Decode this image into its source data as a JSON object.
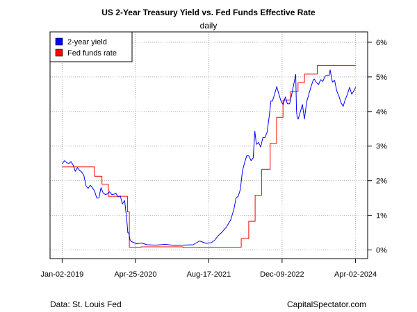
{
  "chart_data": {
    "type": "line",
    "title": "US 2-Year Treasury Yield vs. Fed Funds Effective Rate",
    "subtitle": "daily",
    "x_ticks": [
      "Jan-02-2019",
      "Apr-25-2020",
      "Aug-17-2021",
      "Dec-09-2022",
      "Apr-02-2024"
    ],
    "xlim": [
      "2018-10-15",
      "2024-06-20"
    ],
    "y_ticks": [
      "0%",
      "1%",
      "2%",
      "3%",
      "4%",
      "5%",
      "6%"
    ],
    "ylim": [
      -0.25,
      6.3
    ],
    "y_axis_side": "right",
    "grid": true,
    "legend_position": "top-left",
    "series": [
      {
        "name": "2-year yield",
        "color": "#0000ff",
        "points": [
          [
            "2019-01-02",
            2.49
          ],
          [
            "2019-01-18",
            2.58
          ],
          [
            "2019-02-01",
            2.52
          ],
          [
            "2019-02-15",
            2.5
          ],
          [
            "2019-03-01",
            2.55
          ],
          [
            "2019-03-15",
            2.45
          ],
          [
            "2019-03-29",
            2.27
          ],
          [
            "2019-04-12",
            2.38
          ],
          [
            "2019-04-26",
            2.3
          ],
          [
            "2019-05-10",
            2.25
          ],
          [
            "2019-05-24",
            2.15
          ],
          [
            "2019-06-07",
            1.85
          ],
          [
            "2019-06-21",
            1.78
          ],
          [
            "2019-07-05",
            1.87
          ],
          [
            "2019-07-19",
            1.8
          ],
          [
            "2019-08-02",
            1.7
          ],
          [
            "2019-08-16",
            1.5
          ],
          [
            "2019-08-30",
            1.5
          ],
          [
            "2019-09-13",
            1.8
          ],
          [
            "2019-09-27",
            1.65
          ],
          [
            "2019-10-11",
            1.6
          ],
          [
            "2019-10-25",
            1.62
          ],
          [
            "2019-11-08",
            1.68
          ],
          [
            "2019-11-22",
            1.6
          ],
          [
            "2019-12-06",
            1.61
          ],
          [
            "2019-12-20",
            1.63
          ],
          [
            "2020-01-03",
            1.53
          ],
          [
            "2020-01-17",
            1.56
          ],
          [
            "2020-01-31",
            1.33
          ],
          [
            "2020-02-14",
            1.43
          ],
          [
            "2020-02-28",
            0.9
          ],
          [
            "2020-03-06",
            0.5
          ],
          [
            "2020-03-13",
            0.49
          ],
          [
            "2020-03-20",
            0.3
          ],
          [
            "2020-03-27",
            0.25
          ],
          [
            "2020-04-10",
            0.22
          ],
          [
            "2020-05-01",
            0.18
          ],
          [
            "2020-06-05",
            0.2
          ],
          [
            "2020-07-10",
            0.15
          ],
          [
            "2020-09-04",
            0.14
          ],
          [
            "2020-11-06",
            0.16
          ],
          [
            "2021-01-08",
            0.13
          ],
          [
            "2021-03-05",
            0.14
          ],
          [
            "2021-05-07",
            0.15
          ],
          [
            "2021-06-18",
            0.26
          ],
          [
            "2021-07-30",
            0.19
          ],
          [
            "2021-09-03",
            0.21
          ],
          [
            "2021-09-24",
            0.28
          ],
          [
            "2021-10-15",
            0.4
          ],
          [
            "2021-11-12",
            0.52
          ],
          [
            "2021-12-10",
            0.66
          ],
          [
            "2022-01-07",
            0.87
          ],
          [
            "2022-01-28",
            1.17
          ],
          [
            "2022-02-11",
            1.5
          ],
          [
            "2022-02-25",
            1.55
          ],
          [
            "2022-03-11",
            1.75
          ],
          [
            "2022-03-25",
            2.28
          ],
          [
            "2022-04-08",
            2.52
          ],
          [
            "2022-04-22",
            2.72
          ],
          [
            "2022-05-06",
            2.72
          ],
          [
            "2022-05-20",
            2.58
          ],
          [
            "2022-06-03",
            2.66
          ],
          [
            "2022-06-14",
            3.43
          ],
          [
            "2022-06-24",
            3.05
          ],
          [
            "2022-07-08",
            3.11
          ],
          [
            "2022-07-22",
            2.97
          ],
          [
            "2022-08-05",
            3.24
          ],
          [
            "2022-08-19",
            3.25
          ],
          [
            "2022-09-02",
            3.4
          ],
          [
            "2022-09-16",
            3.87
          ],
          [
            "2022-09-27",
            4.3
          ],
          [
            "2022-10-07",
            4.3
          ],
          [
            "2022-10-21",
            4.5
          ],
          [
            "2022-11-04",
            4.72
          ],
          [
            "2022-11-18",
            4.5
          ],
          [
            "2022-12-02",
            4.3
          ],
          [
            "2022-12-16",
            4.2
          ],
          [
            "2022-12-30",
            4.42
          ],
          [
            "2023-01-13",
            4.22
          ],
          [
            "2023-01-27",
            4.22
          ],
          [
            "2023-02-10",
            4.5
          ],
          [
            "2023-02-24",
            4.8
          ],
          [
            "2023-03-08",
            5.07
          ],
          [
            "2023-03-13",
            4.03
          ],
          [
            "2023-03-17",
            3.84
          ],
          [
            "2023-03-24",
            3.78
          ],
          [
            "2023-04-07",
            3.99
          ],
          [
            "2023-04-21",
            4.2
          ],
          [
            "2023-05-04",
            3.78
          ],
          [
            "2023-05-19",
            4.28
          ],
          [
            "2023-06-02",
            4.5
          ],
          [
            "2023-06-16",
            4.72
          ],
          [
            "2023-06-30",
            4.9
          ],
          [
            "2023-07-07",
            4.94
          ],
          [
            "2023-07-21",
            4.84
          ],
          [
            "2023-08-04",
            4.78
          ],
          [
            "2023-08-18",
            4.92
          ],
          [
            "2023-09-01",
            4.87
          ],
          [
            "2023-09-15",
            5.02
          ],
          [
            "2023-09-29",
            5.05
          ],
          [
            "2023-10-13",
            5.05
          ],
          [
            "2023-10-19",
            5.2
          ],
          [
            "2023-11-03",
            4.85
          ],
          [
            "2023-11-17",
            4.9
          ],
          [
            "2023-12-01",
            4.6
          ],
          [
            "2023-12-15",
            4.45
          ],
          [
            "2023-12-29",
            4.25
          ],
          [
            "2024-01-12",
            4.15
          ],
          [
            "2024-01-26",
            4.35
          ],
          [
            "2024-02-09",
            4.5
          ],
          [
            "2024-02-23",
            4.7
          ],
          [
            "2024-03-08",
            4.5
          ],
          [
            "2024-03-22",
            4.6
          ],
          [
            "2024-04-02",
            4.7
          ]
        ]
      },
      {
        "name": "Fed funds rate",
        "color": "#ff0000",
        "step": true,
        "points": [
          [
            "2019-01-02",
            2.4
          ],
          [
            "2019-08-01",
            2.13
          ],
          [
            "2019-09-19",
            1.9
          ],
          [
            "2019-10-31",
            1.55
          ],
          [
            "2020-03-04",
            1.1
          ],
          [
            "2020-03-16",
            0.08
          ],
          [
            "2020-06-01",
            0.09
          ],
          [
            "2020-12-01",
            0.09
          ],
          [
            "2021-03-01",
            0.07
          ],
          [
            "2021-06-17",
            0.08
          ],
          [
            "2021-12-01",
            0.08
          ],
          [
            "2022-03-17",
            0.33
          ],
          [
            "2022-05-05",
            0.83
          ],
          [
            "2022-06-16",
            1.58
          ],
          [
            "2022-07-28",
            2.33
          ],
          [
            "2022-09-22",
            3.08
          ],
          [
            "2022-11-03",
            3.83
          ],
          [
            "2022-12-15",
            4.33
          ],
          [
            "2023-02-02",
            4.58
          ],
          [
            "2023-03-23",
            4.83
          ],
          [
            "2023-05-04",
            5.08
          ],
          [
            "2023-07-27",
            5.33
          ],
          [
            "2024-04-02",
            5.33
          ]
        ]
      }
    ]
  },
  "footer": {
    "source": "Data: St. Louis Fed",
    "brand": "CapitalSpectator.com"
  }
}
